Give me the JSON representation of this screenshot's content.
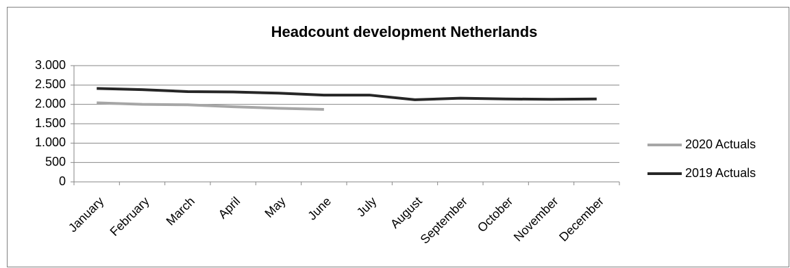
{
  "chart_data": {
    "type": "line",
    "title": "Headcount development Netherlands",
    "categories": [
      "January",
      "February",
      "March",
      "April",
      "May",
      "June",
      "July",
      "August",
      "September",
      "October",
      "November",
      "December"
    ],
    "series": [
      {
        "name": "2020 Actuals",
        "color": "#a6a6a6",
        "values": [
          2040,
          2000,
          1990,
          1940,
          1900,
          1870,
          null,
          null,
          null,
          null,
          null,
          null
        ]
      },
      {
        "name": "2019 Actuals",
        "color": "#262626",
        "values": [
          2410,
          2380,
          2330,
          2320,
          2290,
          2240,
          2240,
          2120,
          2160,
          2140,
          2130,
          2140
        ]
      }
    ],
    "ylim": [
      0,
      3000
    ],
    "yticks": [
      0,
      500,
      {
        "value": 1000,
        "label": "1.000"
      },
      {
        "value": 1500,
        "label": "1.500"
      },
      {
        "value": 2000,
        "label": "2.000"
      },
      {
        "value": 2500,
        "label": "2.500"
      },
      {
        "value": 3000,
        "label": "3.000"
      }
    ],
    "grid": true,
    "legend": "right"
  }
}
